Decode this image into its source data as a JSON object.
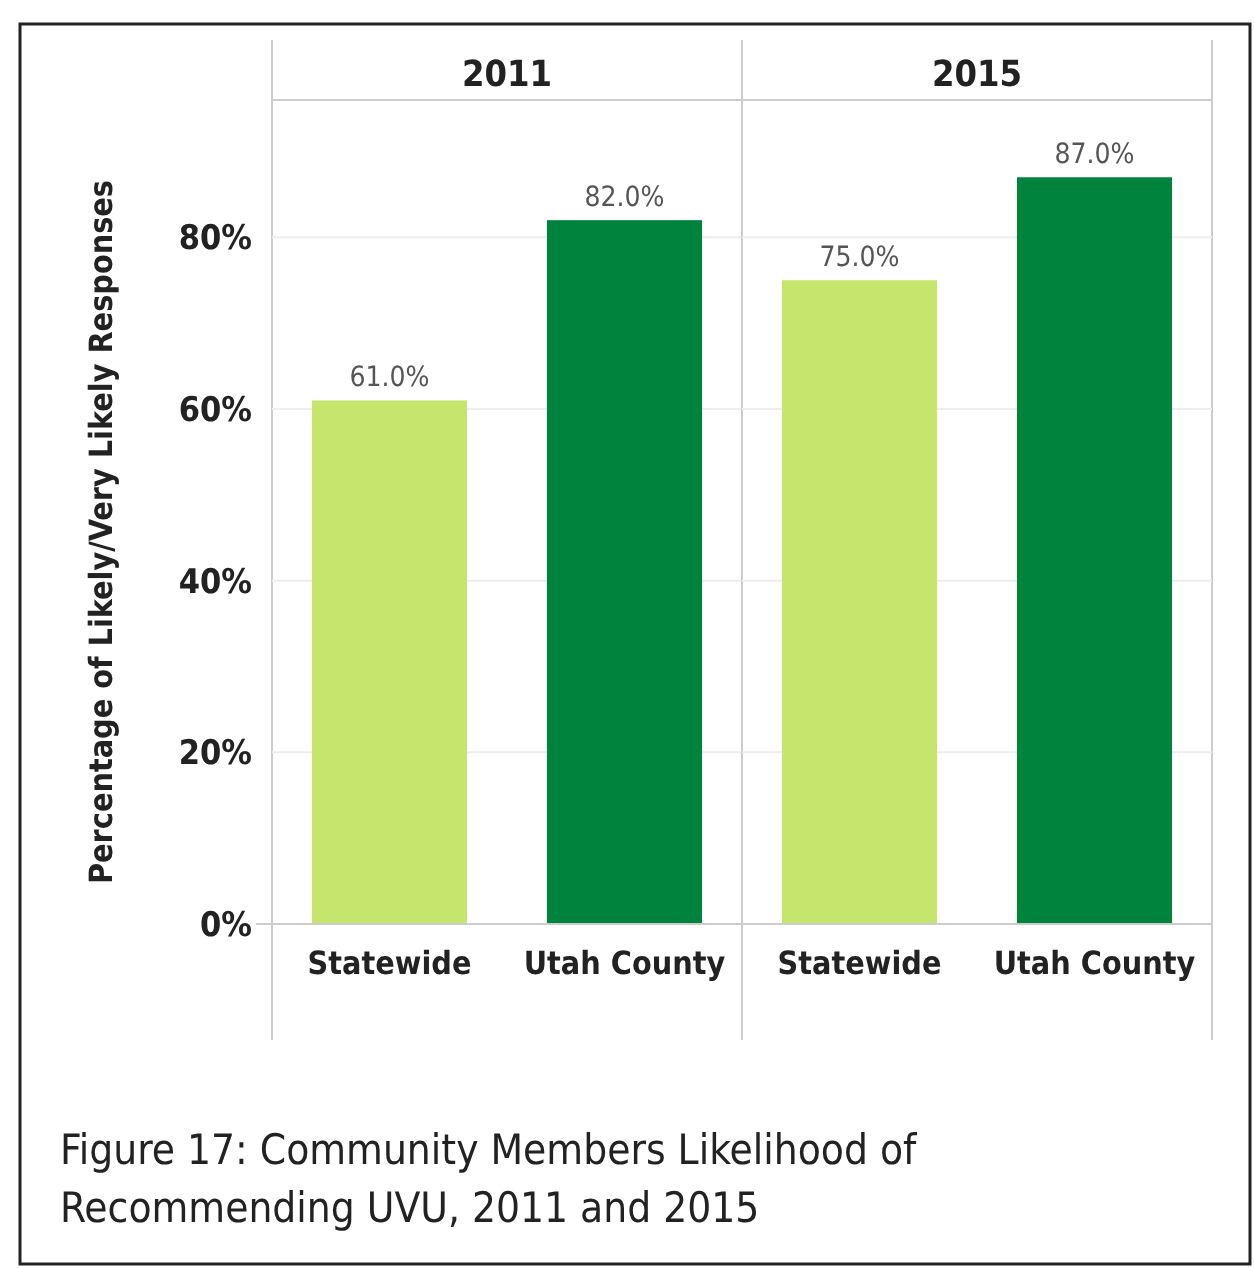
{
  "chart_data": [
    {
      "type": "bar",
      "title": "2011",
      "ylabel": "Percentage of Likely/Very Likely Responses",
      "categories": [
        "Statewide",
        "Utah County"
      ],
      "values": [
        61,
        82
      ],
      "colors": [
        "#c5e56c",
        "#00843d"
      ],
      "value_labels": [
        "61.0%",
        "82.0%"
      ],
      "ylim": [
        0,
        96
      ],
      "yticks": [
        {
          "value": 0,
          "label": "0%"
        },
        {
          "value": 20,
          "label": "20%"
        },
        {
          "value": 40,
          "label": "40%"
        },
        {
          "value": 60,
          "label": "60%"
        },
        {
          "value": 80,
          "label": "80%"
        }
      ],
      "grid": "y",
      "annotations": [
        "Figure 17: Community Members Likelihood of Recommending UVU, 2011 and 2015"
      ]
    },
    {
      "type": "bar",
      "title": "2015",
      "categories": [
        "Statewide",
        "Utah County"
      ],
      "values": [
        75,
        87
      ],
      "colors": [
        "#c5e56c",
        "#00843d"
      ],
      "value_labels": [
        "75.0%",
        "87.0%"
      ],
      "ylim": [
        0,
        96
      ],
      "yticks": [
        {
          "value": 0,
          "label": null
        },
        {
          "value": 20,
          "label": null
        },
        {
          "value": 40,
          "label": null
        },
        {
          "value": 60,
          "label": null
        },
        {
          "value": 80,
          "label": null
        }
      ],
      "grid": "y",
      "tick_labels": "x"
    }
  ]
}
